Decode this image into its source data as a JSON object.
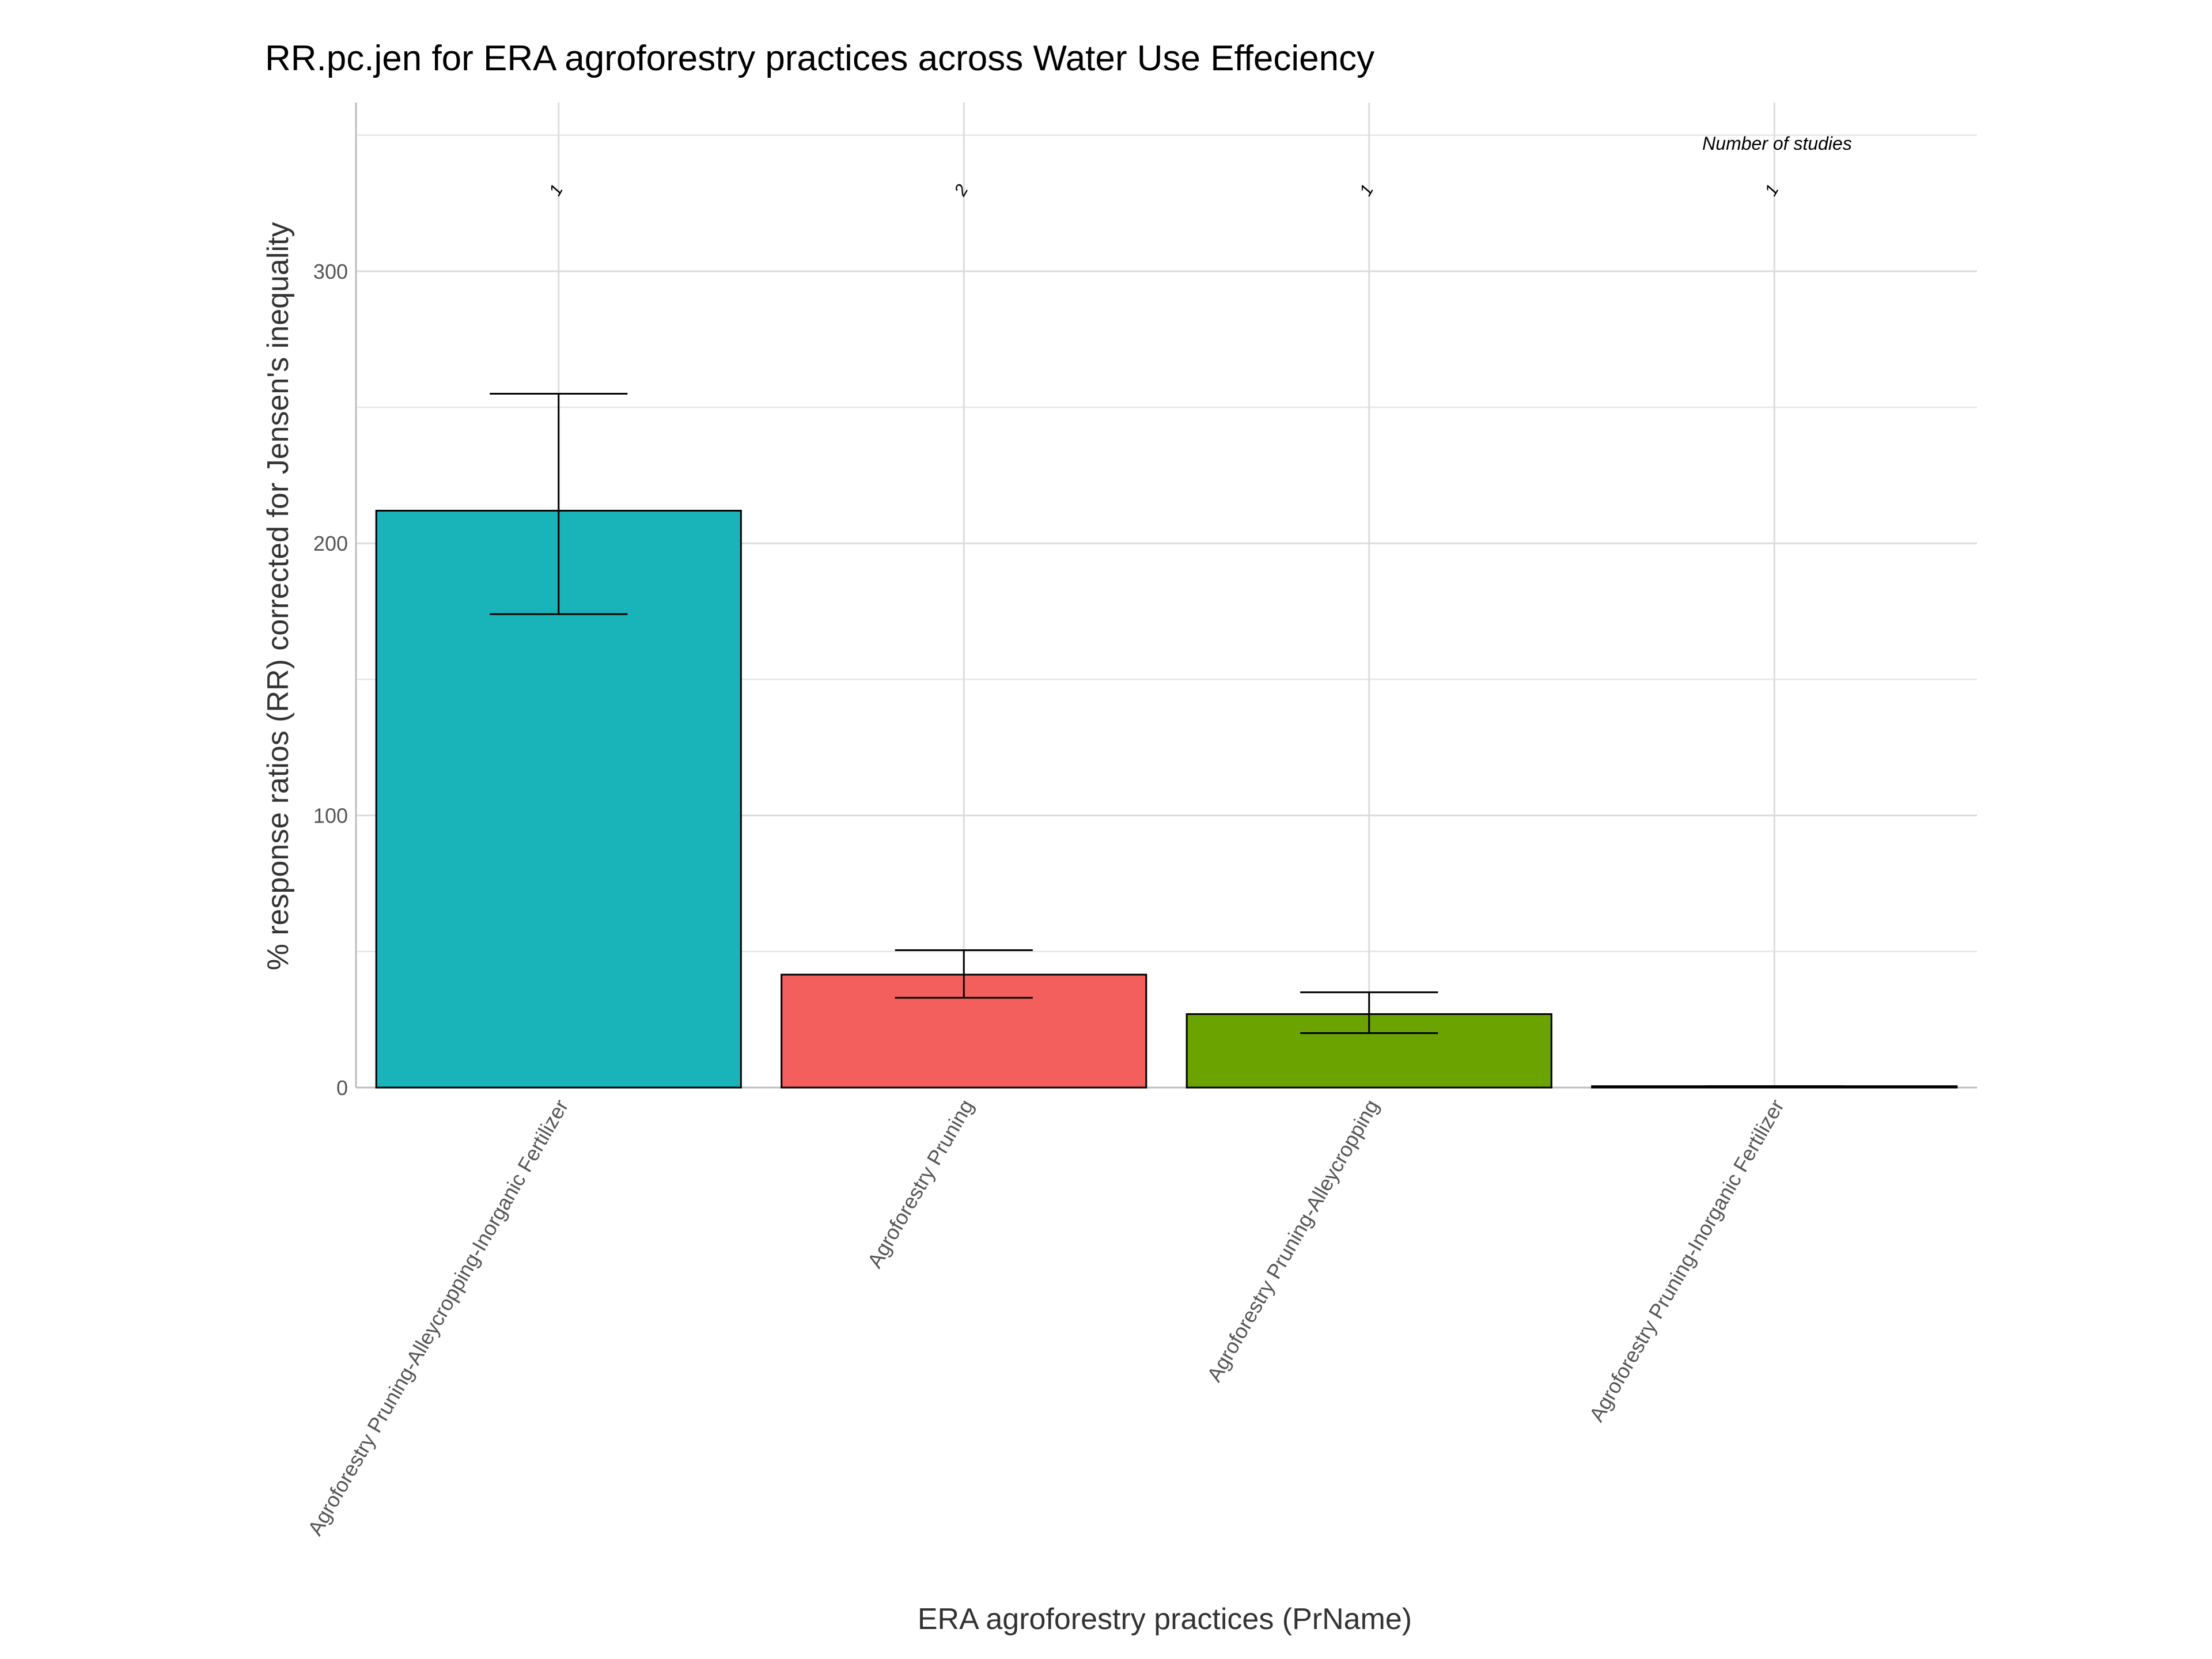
{
  "chart_data": {
    "type": "bar",
    "title": "RR.pc.jen for ERA agroforestry practices across Water Use Effeciency",
    "xlabel": "ERA agroforestry practices (PrName)",
    "ylabel": "% response ratios (RR) corrected for Jensen's inequality",
    "ylim": [
      0,
      362
    ],
    "yticks": [
      0,
      100,
      200,
      300
    ],
    "grid": true,
    "legend": "none",
    "categories": [
      "Agroforestry Pruning-Alleycropping-Inorganic Fertilizer",
      "Agroforestry Pruning",
      "Agroforestry Pruning-Alleycropping",
      "Agroforestry Pruning-Inorganic Fertilizer"
    ],
    "values": [
      212,
      41.5,
      27,
      0.5
    ],
    "error_low": [
      174,
      33,
      20,
      0.5
    ],
    "error_high": [
      255,
      50.5,
      35,
      0.5
    ],
    "colors": [
      "#19B4B9",
      "#F25F5C",
      "#6BA300",
      "#D4A3F0"
    ],
    "study_counts": [
      "1",
      "2",
      "1",
      "1"
    ],
    "annotation": "Number of studies"
  }
}
